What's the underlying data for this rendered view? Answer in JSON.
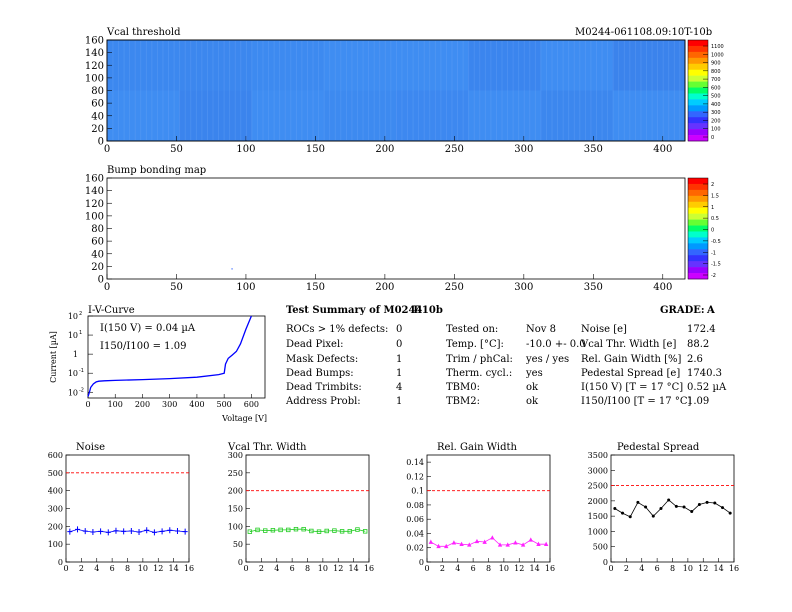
{
  "header": {
    "map_title": "Vcal threshold",
    "module_id": "M0244-061108.09:10T-10b"
  },
  "bump_title": "Bump bonding map",
  "colors": {
    "map_fill": "#3f8df2",
    "series_noise": "#0000ff",
    "series_vcal": "#22cc22",
    "series_gain": "#ff22ff",
    "series_pedestal": "#000000",
    "limit_line": "#ff0000",
    "iv_curve": "#0000ff"
  },
  "palette_labels_vcal": [
    "1100",
    "1000",
    "900",
    "800",
    "700",
    "600",
    "500",
    "400",
    "300",
    "200",
    "100",
    "0"
  ],
  "palette_labels_bump": [
    "2",
    "1.5",
    "1",
    "0.5",
    "0",
    "-0.5",
    "-1",
    "-1.5",
    "-2"
  ],
  "summary": {
    "title": "Test Summary of M0244",
    "module_tag": "T-10b",
    "grade_label": "GRADE:",
    "grade_value": "A",
    "left": [
      {
        "label": "ROCs > 1% defects:",
        "value": "0"
      },
      {
        "label": "Dead Pixel:",
        "value": "0"
      },
      {
        "label": "Mask Defects:",
        "value": "1"
      },
      {
        "label": "Dead Bumps:",
        "value": "1"
      },
      {
        "label": "Dead Trimbits:",
        "value": "4"
      },
      {
        "label": "Address Probl:",
        "value": "1"
      }
    ],
    "mid": [
      {
        "label": "Tested on:",
        "value": "Nov 8"
      },
      {
        "label": "Temp. [°C]:",
        "value": "-10.0 +- 0.0"
      },
      {
        "label": "Trim / phCal:",
        "value": "yes / yes"
      },
      {
        "label": "Therm. cycl.:",
        "value": "yes"
      },
      {
        "label": "TBM0:",
        "value": "ok"
      },
      {
        "label": "TBM2:",
        "value": "ok"
      }
    ],
    "right": [
      {
        "label": "Noise [e]",
        "value": "172.4"
      },
      {
        "label": "Vcal Thr. Width [e]",
        "value": "88.2"
      },
      {
        "label": "Rel. Gain Width [%]",
        "value": "2.6"
      },
      {
        "label": "Pedestal Spread [e]",
        "value": "1740.3"
      },
      {
        "label": "I(150 V) [T = 17 °C]",
        "value": "0.52 µA"
      },
      {
        "label": "I150/I100   [T = 17 °C]",
        "value": "1.09"
      }
    ]
  },
  "chart_data": [
    {
      "type": "heatmap",
      "title": "Vcal threshold",
      "xlim": [
        0,
        416
      ],
      "ylim": [
        0,
        160
      ],
      "x_ticks": [
        0,
        50,
        100,
        150,
        200,
        250,
        300,
        350,
        400
      ],
      "y_ticks": [
        0,
        20,
        40,
        60,
        80,
        100,
        120,
        140,
        160
      ],
      "z_labels": [
        "1100",
        "1000",
        "900",
        "800",
        "700",
        "600",
        "500",
        "400",
        "300",
        "200",
        "100",
        "0"
      ]
    },
    {
      "type": "heatmap",
      "title": "Bump bonding map",
      "xlim": [
        0,
        416
      ],
      "ylim": [
        0,
        160
      ],
      "x_ticks": [
        0,
        50,
        100,
        150,
        200,
        250,
        300,
        350,
        400
      ],
      "y_ticks": [
        0,
        20,
        40,
        60,
        80,
        100,
        120,
        140,
        160
      ],
      "z_labels": [
        "2",
        "1.5",
        "1",
        "0.5",
        "0",
        "-0.5",
        "-1",
        "-1.5",
        "-2"
      ]
    },
    {
      "type": "line",
      "title": "I-V-Curve",
      "xlabel": "Voltage [V]",
      "ylabel": "Current [µA]",
      "xlim": [
        0,
        650
      ],
      "ylim_log": [
        -2.3,
        2
      ],
      "yscale": "log",
      "x_ticks": [
        0,
        100,
        200,
        300,
        400,
        500,
        600
      ],
      "annotation_1": "I(150 V) = 0.04 µA",
      "annotation_2": "I150/I100 = 1.09",
      "x": [
        0,
        5,
        10,
        20,
        30,
        40,
        60,
        100,
        200,
        300,
        400,
        480,
        500,
        505,
        515,
        530,
        545,
        560,
        580,
        600
      ],
      "y": [
        0.006,
        0.01,
        0.018,
        0.028,
        0.035,
        0.038,
        0.04,
        0.042,
        0.046,
        0.052,
        0.062,
        0.085,
        0.1,
        0.3,
        0.6,
        0.9,
        1.4,
        3.5,
        20,
        120
      ]
    },
    {
      "type": "line",
      "title": "Noise",
      "xlim": [
        0,
        16
      ],
      "ylim": [
        0,
        600
      ],
      "x_ticks": [
        0,
        2,
        4,
        6,
        8,
        10,
        12,
        14,
        16
      ],
      "y_ticks": [
        0,
        100,
        200,
        300,
        400,
        500,
        600
      ],
      "limit": 500,
      "x": [
        0.5,
        1.5,
        2.5,
        3.5,
        4.5,
        5.5,
        6.5,
        7.5,
        8.5,
        9.5,
        10.5,
        11.5,
        12.5,
        13.5,
        14.5,
        15.5
      ],
      "values": [
        170,
        183,
        173,
        168,
        172,
        166,
        175,
        172,
        174,
        168,
        178,
        166,
        172,
        178,
        174,
        170
      ]
    },
    {
      "type": "line",
      "title": "Vcal Thr. Width",
      "xlim": [
        0,
        16
      ],
      "ylim": [
        0,
        300
      ],
      "x_ticks": [
        0,
        2,
        4,
        6,
        8,
        10,
        12,
        14,
        16
      ],
      "y_ticks": [
        0,
        50,
        100,
        150,
        200,
        250,
        300
      ],
      "limit": 200,
      "x": [
        0.5,
        1.5,
        2.5,
        3.5,
        4.5,
        5.5,
        6.5,
        7.5,
        8.5,
        9.5,
        10.5,
        11.5,
        12.5,
        13.5,
        14.5,
        15.5
      ],
      "values": [
        85,
        90,
        88,
        89,
        90,
        90,
        92,
        92,
        87,
        85,
        87,
        88,
        86,
        86,
        91,
        86
      ]
    },
    {
      "type": "line",
      "title": "Rel. Gain Width",
      "xlim": [
        0,
        16
      ],
      "ylim": [
        0,
        0.15
      ],
      "x_ticks": [
        0,
        2,
        4,
        6,
        8,
        10,
        12,
        14,
        16
      ],
      "y_ticks": [
        0,
        0.02,
        0.04,
        0.06,
        0.08,
        0.1,
        0.12,
        0.14
      ],
      "limit": 0.1,
      "x": [
        0.5,
        1.5,
        2.5,
        3.5,
        4.5,
        5.5,
        6.5,
        7.5,
        8.5,
        9.5,
        10.5,
        11.5,
        12.5,
        13.5,
        14.5,
        15.5
      ],
      "values": [
        0.028,
        0.022,
        0.022,
        0.027,
        0.025,
        0.024,
        0.029,
        0.028,
        0.034,
        0.024,
        0.024,
        0.027,
        0.024,
        0.031,
        0.025,
        0.025
      ]
    },
    {
      "type": "line",
      "title": "Pedestal Spread",
      "xlim": [
        0,
        16
      ],
      "ylim": [
        0,
        3500
      ],
      "x_ticks": [
        0,
        2,
        4,
        6,
        8,
        10,
        12,
        14,
        16
      ],
      "y_ticks": [
        0,
        500,
        1000,
        1500,
        2000,
        2500,
        3000,
        3500
      ],
      "limit": 2500,
      "x": [
        0.5,
        1.5,
        2.5,
        3.5,
        4.5,
        5.5,
        6.5,
        7.5,
        8.5,
        9.5,
        10.5,
        11.5,
        12.5,
        13.5,
        14.5,
        15.5
      ],
      "values": [
        1750,
        1600,
        1480,
        1950,
        1800,
        1500,
        1750,
        2030,
        1820,
        1800,
        1650,
        1880,
        1950,
        1930,
        1780,
        1600
      ]
    }
  ]
}
